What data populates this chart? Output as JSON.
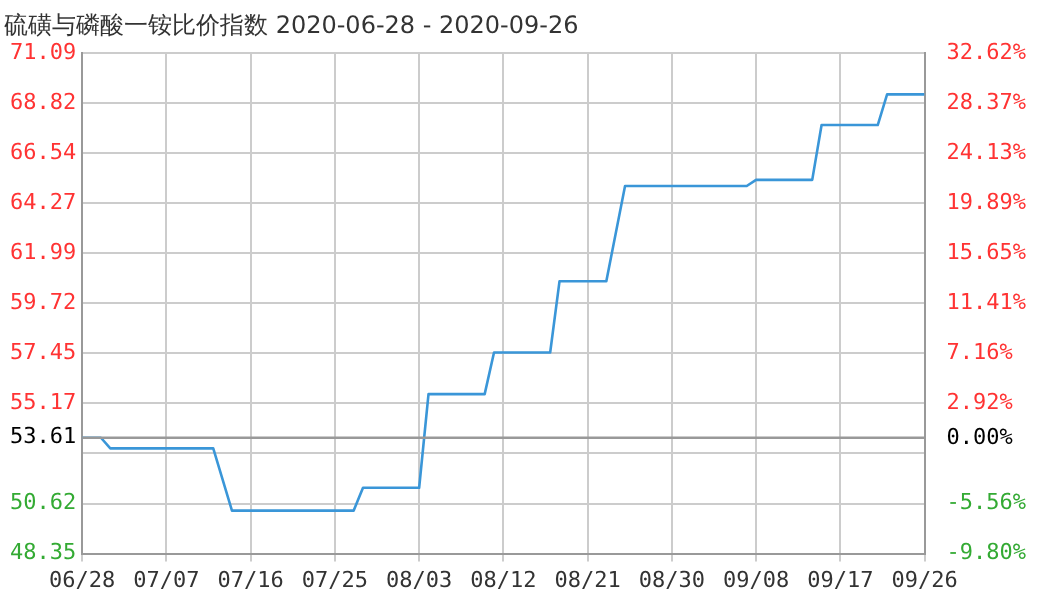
{
  "chart_data": {
    "type": "step",
    "title": "硫磺与磷酸一铵比价指数 2020-06-28 - 2020-09-26",
    "x": [
      "--06-28",
      "--06-30",
      "--07-01",
      "--07-12",
      "--07-14",
      "--07-27",
      "--07-28",
      "--08-03",
      "--08-04",
      "--08-10",
      "--08-11",
      "--08-17",
      "--08-18",
      "--08-23",
      "--08-25",
      "--09-07",
      "--09-08",
      "--09-14",
      "--09-15",
      "--09-21",
      "--09-22",
      "--09-26"
    ],
    "series": [
      {
        "color": "#3a96d8",
        "values": [
          53.61,
          53.61,
          53.13,
          53.13,
          50.3,
          50.3,
          51.34,
          51.34,
          55.59,
          55.59,
          57.48,
          57.48,
          60.72,
          60.72,
          65.04,
          65.04,
          65.32,
          65.32,
          67.81,
          67.81,
          69.2,
          69.2
        ]
      }
    ],
    "xlim": [
      "--06-28",
      "--09-26"
    ],
    "xticks": [
      {
        "value": "--06-28",
        "label": "06/28"
      },
      {
        "value": "--07-07",
        "label": "07/07"
      },
      {
        "value": "--07-16",
        "label": "07/16"
      },
      {
        "value": "--07-25",
        "label": "07/25"
      },
      {
        "value": "--08-03",
        "label": "08/03"
      },
      {
        "value": "--08-12",
        "label": "08/12"
      },
      {
        "value": "--08-21",
        "label": "08/21"
      },
      {
        "value": "--08-30",
        "label": "08/30"
      },
      {
        "value": "--09-08",
        "label": "09/08"
      },
      {
        "value": "--09-17",
        "label": "09/17"
      },
      {
        "value": "--09-26",
        "label": "09/26"
      }
    ],
    "ylim": [
      48.35,
      71.09
    ],
    "yticks": [
      48.35,
      50.62,
      {
        "value": 52.9,
        "label": null
      },
      53.61,
      55.17,
      57.45,
      59.72,
      61.99,
      64.27,
      66.54,
      68.82,
      71.09
    ],
    "y2lim": [
      -9.8,
      32.62
    ],
    "y2ticks": [
      {
        "value": -9.8,
        "label": "-9.80%"
      },
      {
        "value": -5.56,
        "label": "-5.56%"
      },
      {
        "value": 0,
        "label": "0.00%"
      },
      {
        "value": 2.92,
        "label": "2.92%"
      },
      {
        "value": 7.16,
        "label": "7.16%"
      },
      {
        "value": 11.41,
        "label": "11.41%"
      },
      {
        "value": 15.65,
        "label": "15.65%"
      },
      {
        "value": 19.89,
        "label": "19.89%"
      },
      {
        "value": 24.13,
        "label": "24.13%"
      },
      {
        "value": 28.37,
        "label": "28.37%"
      },
      {
        "value": 32.62,
        "label": "32.62%"
      }
    ],
    "ref_lines": [
      {
        "axis": "y",
        "value": 53.61,
        "color": "#999999",
        "line_style": "solid"
      }
    ],
    "grid": true,
    "legend": false,
    "marker": "none",
    "line_style": "solid"
  }
}
